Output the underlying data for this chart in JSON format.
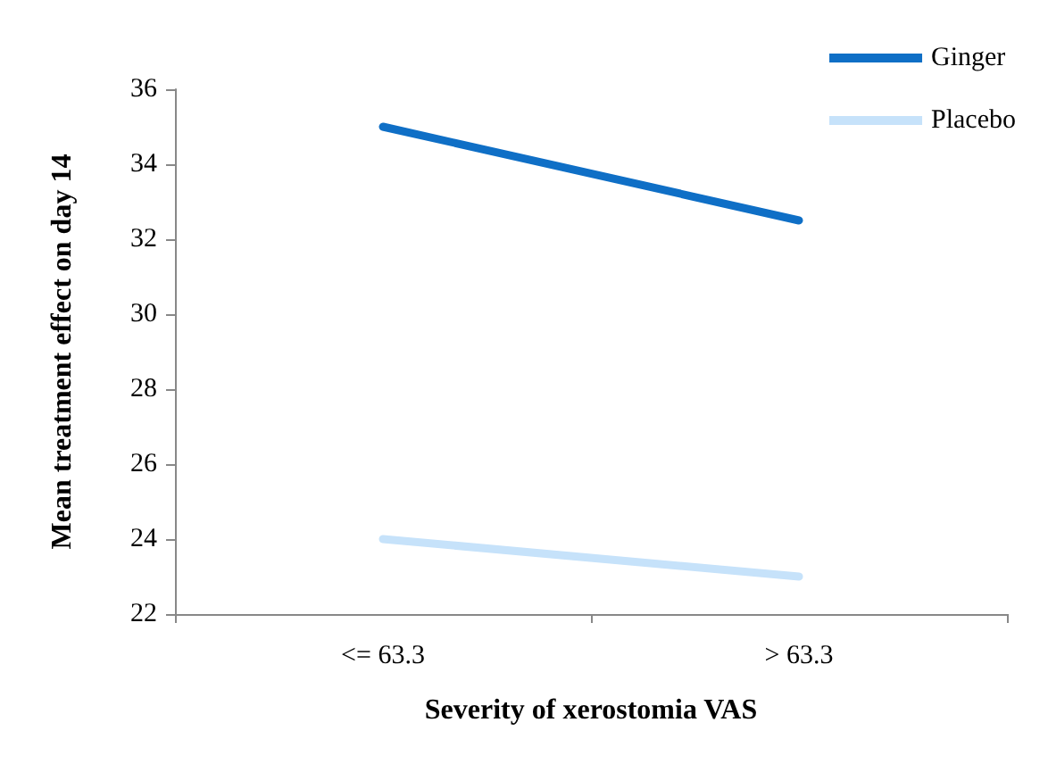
{
  "chart_data": {
    "type": "line",
    "xlabel": "Severity of xerostomia VAS",
    "ylabel": "Mean treatment effect on day 14",
    "categories": [
      "<= 63.3",
      "> 63.3"
    ],
    "series": [
      {
        "name": "Ginger",
        "color": "#0f6fc6",
        "values": [
          35,
          32.5
        ]
      },
      {
        "name": "Placebo",
        "color": "#c6e2fa",
        "values": [
          24,
          23
        ]
      }
    ],
    "ylim": [
      22,
      36
    ],
    "yticks": [
      22,
      24,
      26,
      28,
      30,
      32,
      34,
      36
    ],
    "grid": false,
    "legend": "top right",
    "marker": "none",
    "line_style": "solid"
  }
}
